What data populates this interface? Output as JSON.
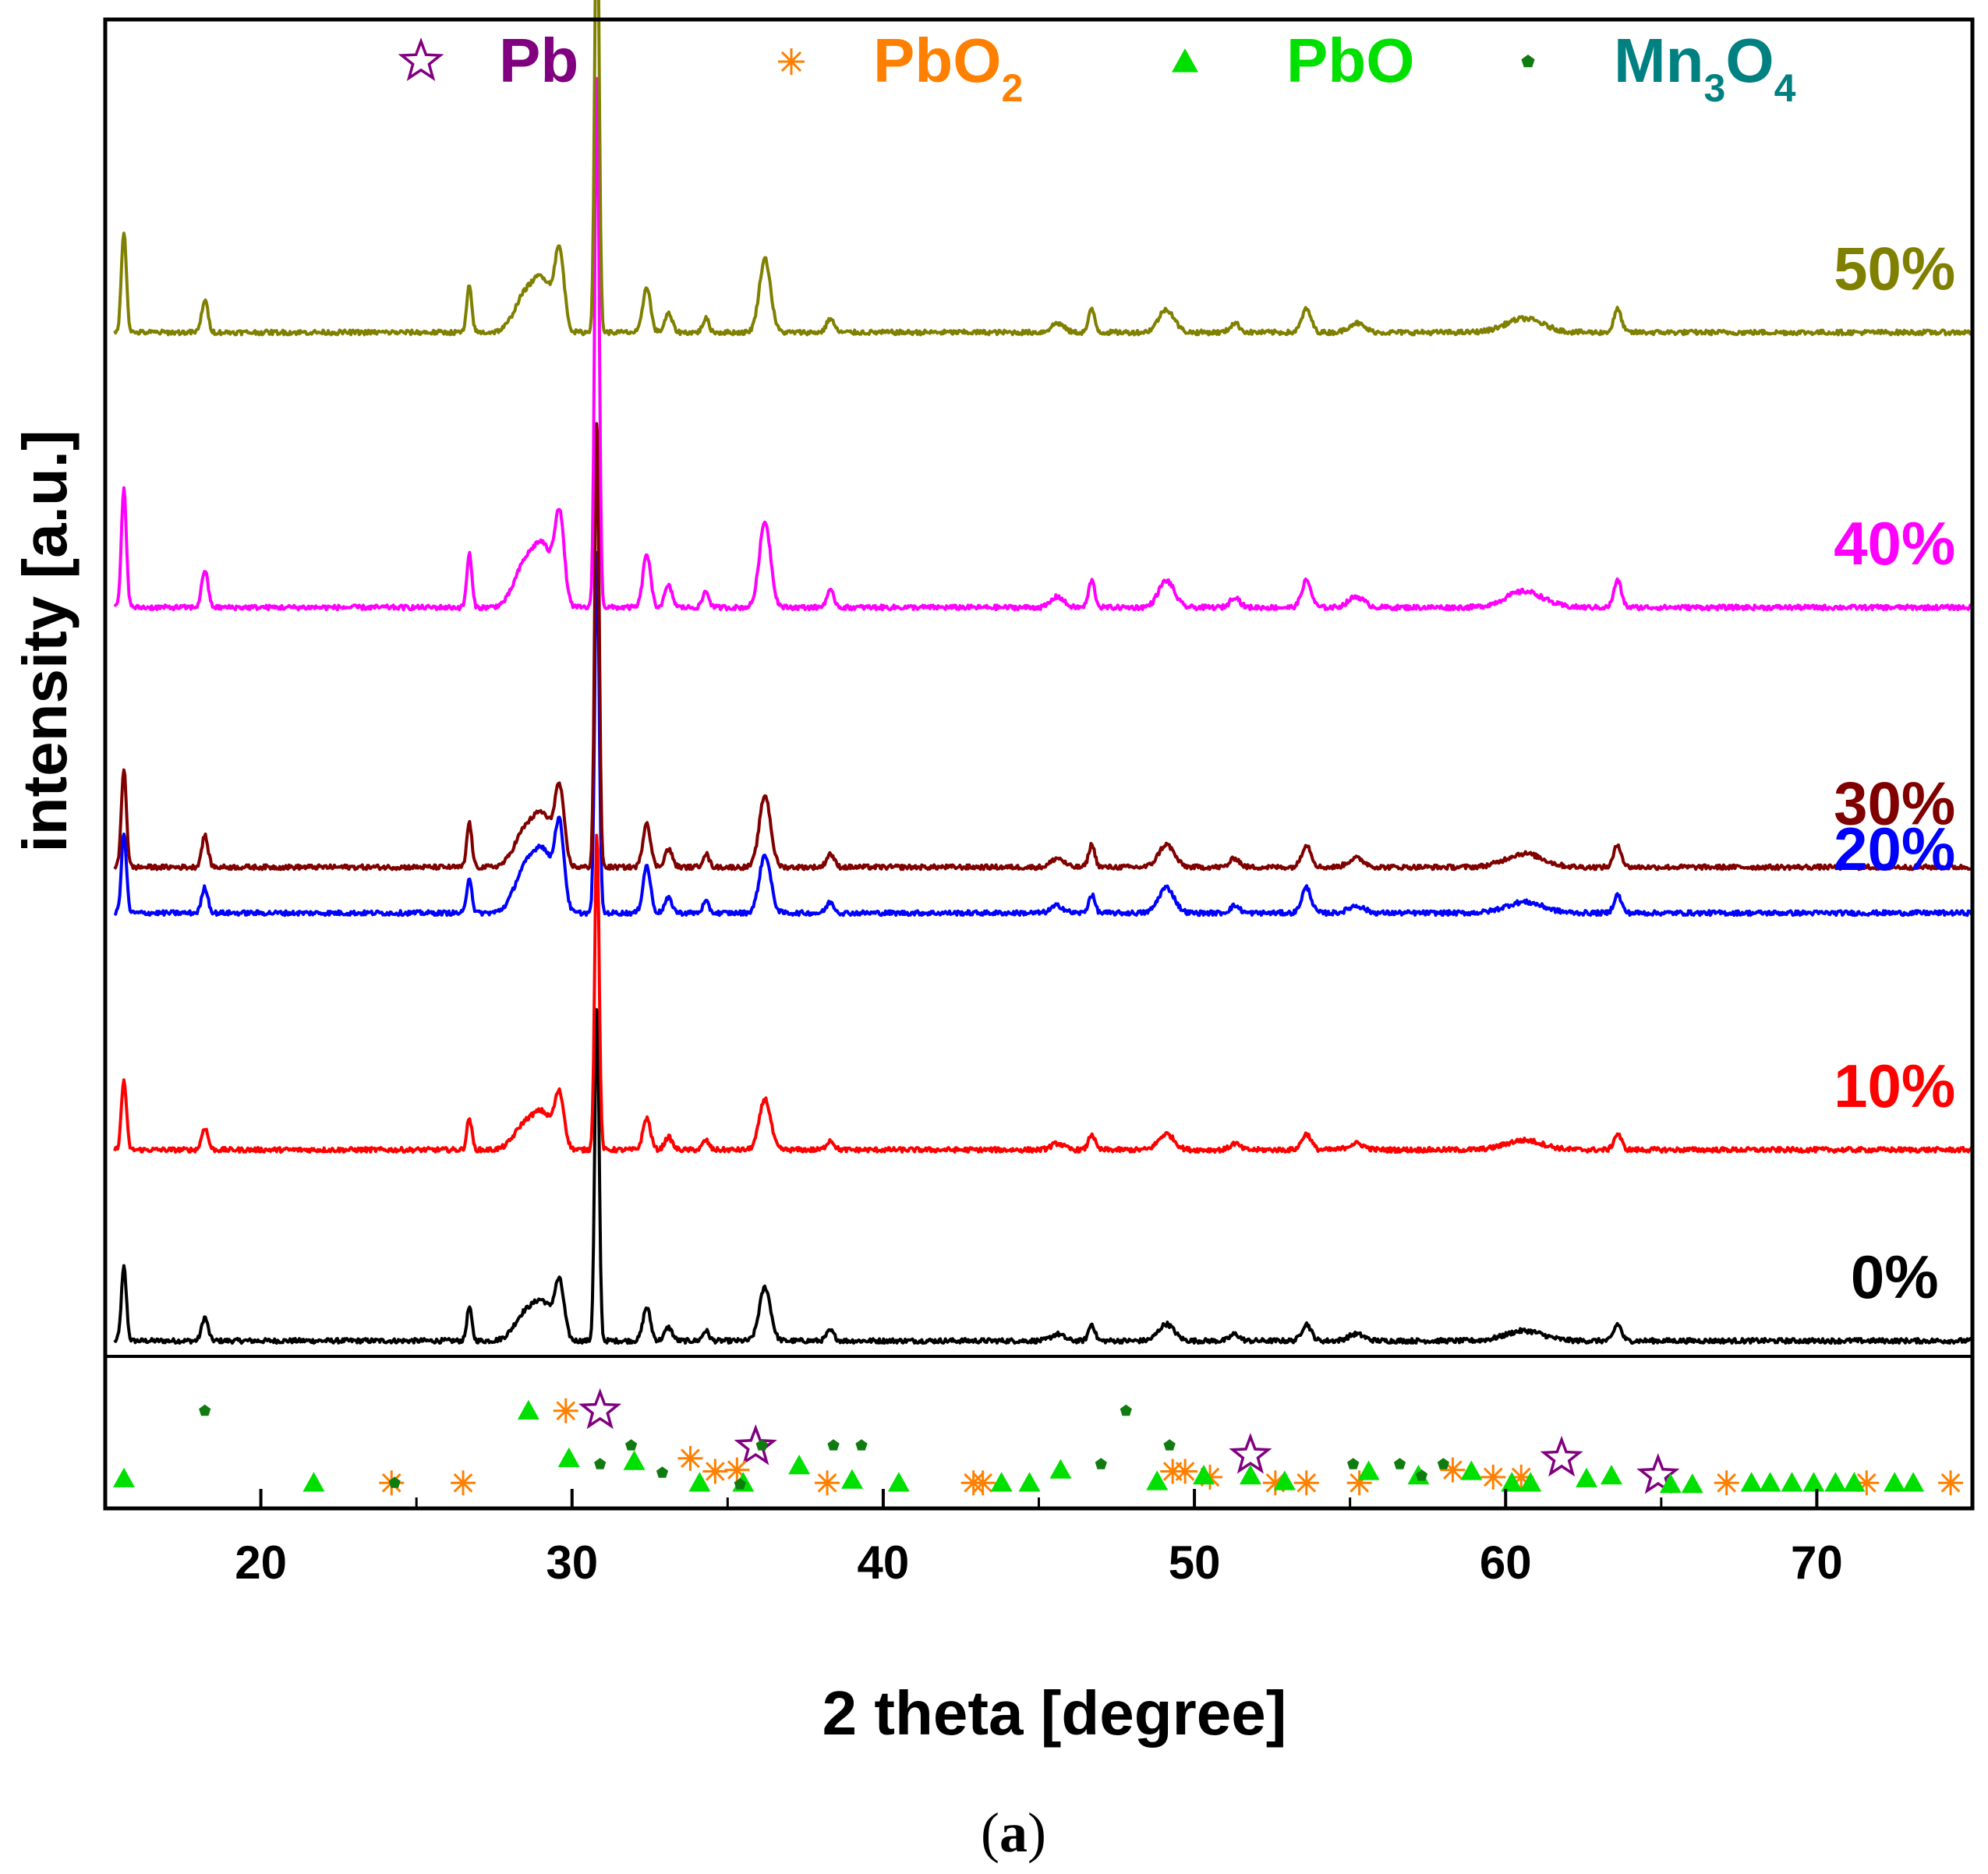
{
  "chart_data": {
    "type": "line",
    "title": "",
    "xlabel": "2 theta [degree]",
    "ylabel": "intensity [a.u.]",
    "xlim": [
      15,
      75
    ],
    "xticks": [
      20,
      30,
      40,
      50,
      60,
      70
    ],
    "tick_labels": [
      "20",
      "30",
      "40",
      "50",
      "60",
      "70"
    ],
    "yticks_visible": false,
    "caption": {
      "open": "(",
      "letter": "a",
      "close": ")"
    },
    "peaks": [
      {
        "x": 15.6,
        "w": 0.08,
        "r": 0.22
      },
      {
        "x": 18.2,
        "w": 0.1,
        "r": 0.07
      },
      {
        "x": 26.7,
        "w": 0.08,
        "r": 0.1
      },
      {
        "x": 28.5,
        "w": 0.35,
        "r": 0.08
      },
      {
        "x": 29.1,
        "w": 0.3,
        "r": 0.1
      },
      {
        "x": 29.6,
        "w": 0.15,
        "r": 0.16
      },
      {
        "x": 30.8,
        "w": 0.07,
        "r": 1.0
      },
      {
        "x": 32.4,
        "w": 0.12,
        "r": 0.1
      },
      {
        "x": 33.1,
        "w": 0.12,
        "r": 0.04
      },
      {
        "x": 34.3,
        "w": 0.1,
        "r": 0.03
      },
      {
        "x": 36.2,
        "w": 0.18,
        "r": 0.16
      },
      {
        "x": 38.3,
        "w": 0.12,
        "r": 0.03
      },
      {
        "x": 45.6,
        "w": 0.2,
        "r": 0.02
      },
      {
        "x": 46.7,
        "w": 0.1,
        "r": 0.05
      },
      {
        "x": 49.1,
        "w": 0.25,
        "r": 0.05
      },
      {
        "x": 51.3,
        "w": 0.15,
        "r": 0.02
      },
      {
        "x": 53.6,
        "w": 0.15,
        "r": 0.05
      },
      {
        "x": 55.2,
        "w": 0.25,
        "r": 0.02
      },
      {
        "x": 60.6,
        "w": 0.6,
        "r": 0.03
      },
      {
        "x": 63.6,
        "w": 0.12,
        "r": 0.05
      }
    ],
    "series": [
      {
        "name": "0%",
        "label": "0%",
        "color": "#000000",
        "baseline_fraction": 0.0,
        "peak_height": 0.29,
        "label_x": 72.5
      },
      {
        "name": "10%",
        "label": "10%",
        "color": "#ff0000",
        "baseline_fraction": 0.25,
        "peak_height": 0.275,
        "label_x": 72.5
      },
      {
        "name": "20%",
        "label": "20%",
        "color": "#0000ff",
        "baseline_fraction": 0.56,
        "peak_height": 0.315,
        "label_x": 72.5,
        "overrides": {
          "29.6": 0.22,
          "29.1": 0.15,
          "28.5": 0.12,
          "32.4": 0.13,
          "49.1": 0.07,
          "53.6": 0.07
        }
      },
      {
        "name": "30%",
        "label": "30%",
        "color": "#800000",
        "baseline_fraction": 0.62,
        "peak_height": 0.39,
        "label_x": 72.5
      },
      {
        "name": "40%",
        "label": "40%",
        "color": "#ff00ff",
        "baseline_fraction": 0.96,
        "peak_height": 0.465,
        "label_x": 72.5
      },
      {
        "name": "50%",
        "label": "50%",
        "color": "#808000",
        "baseline_fraction": 1.32,
        "peak_height": 0.4,
        "label_x": 72.5
      }
    ],
    "legend": {
      "placement": "top",
      "items": [
        {
          "name": "Pb",
          "base": "Pb",
          "sub1": "",
          "mid": "",
          "sub2": "",
          "marker": "star",
          "color": "#800080"
        },
        {
          "name": "PbO2",
          "base": "PbO",
          "sub1": "2",
          "mid": "",
          "sub2": "",
          "marker": "asterisk",
          "color": "#ff8000"
        },
        {
          "name": "PbO",
          "base": "PbO",
          "sub1": "",
          "mid": "",
          "sub2": "",
          "marker": "triangle",
          "color": "#00e000"
        },
        {
          "name": "Mn3O4",
          "base": "Mn",
          "sub1": "3",
          "mid": "O",
          "sub2": "4",
          "marker": "pentagon",
          "color": "#008080"
        }
      ]
    },
    "reference_marks": {
      "Pb": [
        {
          "x": 30.9,
          "level": 0.35
        },
        {
          "x": 35.9,
          "level": 0.6
        },
        {
          "x": 51.8,
          "level": 0.66
        },
        {
          "x": 61.8,
          "level": 0.68
        },
        {
          "x": 64.9,
          "level": 0.8
        }
      ],
      "PbO2": [
        {
          "x": 24.2,
          "level": 0.85
        },
        {
          "x": 26.5,
          "level": 0.85
        },
        {
          "x": 29.8,
          "level": 0.35
        },
        {
          "x": 33.8,
          "level": 0.68
        },
        {
          "x": 34.6,
          "level": 0.77
        },
        {
          "x": 35.3,
          "level": 0.76
        },
        {
          "x": 38.2,
          "level": 0.85
        },
        {
          "x": 42.9,
          "level": 0.85
        },
        {
          "x": 43.2,
          "level": 0.85
        },
        {
          "x": 49.3,
          "level": 0.77
        },
        {
          "x": 49.7,
          "level": 0.77
        },
        {
          "x": 50.5,
          "level": 0.81
        },
        {
          "x": 52.6,
          "level": 0.85
        },
        {
          "x": 53.6,
          "level": 0.85
        },
        {
          "x": 55.3,
          "level": 0.85
        },
        {
          "x": 58.3,
          "level": 0.76
        },
        {
          "x": 59.6,
          "level": 0.81
        },
        {
          "x": 60.5,
          "level": 0.81
        },
        {
          "x": 67.1,
          "level": 0.85
        },
        {
          "x": 71.6,
          "level": 0.85
        },
        {
          "x": 74.3,
          "level": 0.85
        }
      ],
      "PbO": [
        {
          "x": 15.6,
          "level": 0.82
        },
        {
          "x": 21.7,
          "level": 0.85
        },
        {
          "x": 28.6,
          "level": 0.35
        },
        {
          "x": 29.9,
          "level": 0.68
        },
        {
          "x": 32.0,
          "level": 0.7
        },
        {
          "x": 34.1,
          "level": 0.85
        },
        {
          "x": 35.5,
          "level": 0.85
        },
        {
          "x": 37.3,
          "level": 0.73
        },
        {
          "x": 39.0,
          "level": 0.83
        },
        {
          "x": 40.5,
          "level": 0.85
        },
        {
          "x": 43.8,
          "level": 0.85
        },
        {
          "x": 44.7,
          "level": 0.85
        },
        {
          "x": 45.7,
          "level": 0.76
        },
        {
          "x": 48.8,
          "level": 0.84
        },
        {
          "x": 50.3,
          "level": 0.8
        },
        {
          "x": 51.8,
          "level": 0.8
        },
        {
          "x": 52.9,
          "level": 0.84
        },
        {
          "x": 55.6,
          "level": 0.77
        },
        {
          "x": 57.2,
          "level": 0.8
        },
        {
          "x": 58.9,
          "level": 0.77
        },
        {
          "x": 60.2,
          "level": 0.85
        },
        {
          "x": 60.8,
          "level": 0.85
        },
        {
          "x": 62.6,
          "level": 0.82
        },
        {
          "x": 63.4,
          "level": 0.8
        },
        {
          "x": 65.3,
          "level": 0.86
        },
        {
          "x": 66.0,
          "level": 0.86
        },
        {
          "x": 67.9,
          "level": 0.85
        },
        {
          "x": 68.5,
          "level": 0.85
        },
        {
          "x": 69.2,
          "level": 0.85
        },
        {
          "x": 69.9,
          "level": 0.85
        },
        {
          "x": 70.6,
          "level": 0.85
        },
        {
          "x": 71.2,
          "level": 0.85
        },
        {
          "x": 72.5,
          "level": 0.85
        },
        {
          "x": 73.1,
          "level": 0.85
        }
      ],
      "Mn3O4": [
        {
          "x": 18.2,
          "level": 0.35
        },
        {
          "x": 24.3,
          "level": 0.85
        },
        {
          "x": 30.9,
          "level": 0.72
        },
        {
          "x": 31.9,
          "level": 0.59
        },
        {
          "x": 32.9,
          "level": 0.78
        },
        {
          "x": 35.4,
          "level": 0.86
        },
        {
          "x": 36.1,
          "level": 0.59
        },
        {
          "x": 38.4,
          "level": 0.59
        },
        {
          "x": 39.3,
          "level": 0.59
        },
        {
          "x": 47.0,
          "level": 0.72
        },
        {
          "x": 47.8,
          "level": 0.35
        },
        {
          "x": 49.2,
          "level": 0.59
        },
        {
          "x": 55.1,
          "level": 0.72
        },
        {
          "x": 56.6,
          "level": 0.72
        },
        {
          "x": 57.3,
          "level": 0.8
        },
        {
          "x": 58.0,
          "level": 0.72
        }
      ]
    }
  }
}
